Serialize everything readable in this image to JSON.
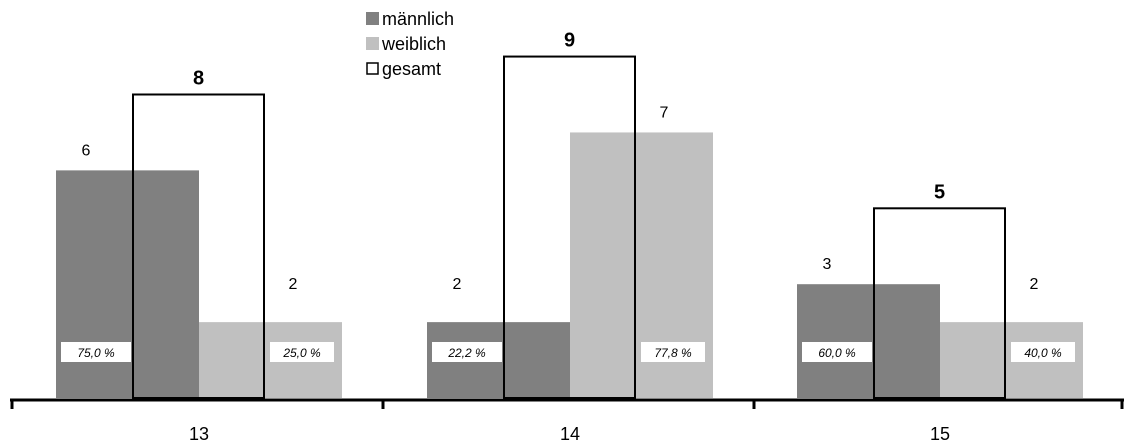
{
  "chart_data": {
    "type": "bar",
    "categories": [
      "13",
      "14",
      "15"
    ],
    "series": [
      {
        "name": "männlich",
        "values": [
          6,
          2,
          3
        ],
        "color": "#808080",
        "percent_labels": [
          "75,0  %",
          "22,2 %",
          "60,0  %"
        ]
      },
      {
        "name": "weiblich",
        "values": [
          2,
          7,
          2
        ],
        "color": "#c0c0c0",
        "percent_labels": [
          "25,0 %",
          "77,8 %",
          "40,0  %"
        ]
      },
      {
        "name": "gesamt",
        "values": [
          8,
          9,
          5
        ],
        "style": "outline"
      }
    ],
    "ylim": [
      0,
      9.7
    ],
    "grid": false,
    "legend_position": "top-center"
  }
}
